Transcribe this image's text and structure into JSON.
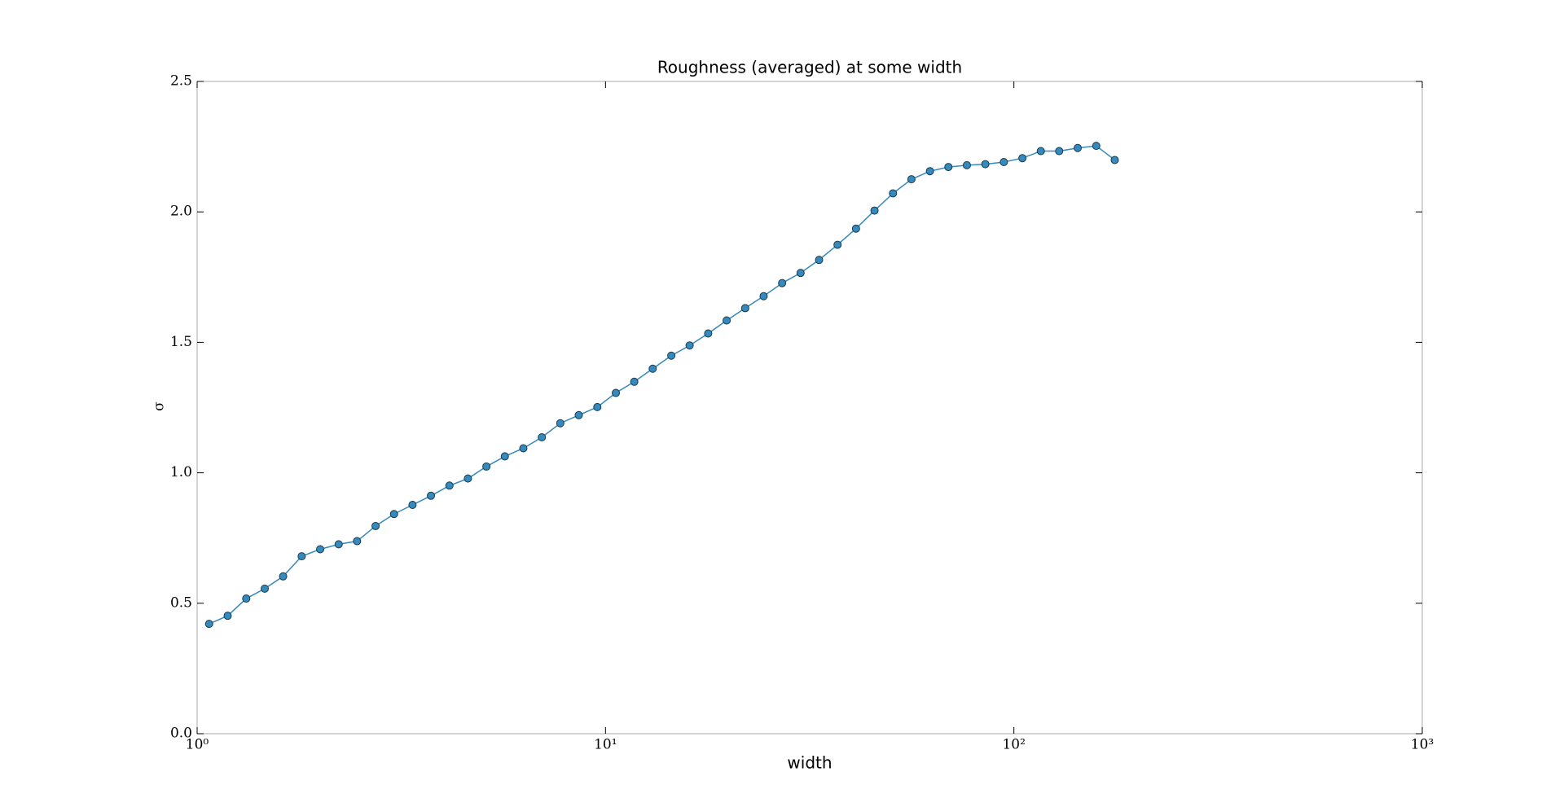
{
  "chart_data": {
    "type": "line",
    "title": "Roughness (averaged) at some width",
    "x_label": "width",
    "y_label": "σ",
    "x_scale": "log",
    "xlim": [
      1,
      1000
    ],
    "xticks": [
      {
        "value": 1,
        "label": "10⁰"
      },
      {
        "value": 10,
        "label": "10¹"
      },
      {
        "value": 100,
        "label": "10²"
      },
      {
        "value": 1000,
        "label": "10³"
      }
    ],
    "ylim": [
      0,
      2.5
    ],
    "yticks": [
      {
        "value": 0,
        "label": "0.0"
      },
      0.5,
      {
        "value": 1,
        "label": "1.0"
      },
      1.5,
      {
        "value": 2,
        "label": "2.0"
      },
      2.5
    ],
    "grid": false,
    "series": [
      {
        "name": "σ",
        "color": "#348abd",
        "x": [
          1.07,
          1.188,
          1.319,
          1.464,
          1.624,
          1.803,
          2.001,
          2.221,
          2.464,
          2.735,
          3.035,
          3.368,
          3.737,
          4.148,
          4.603,
          5.109,
          5.669,
          6.292,
          6.984,
          7.75,
          8.602,
          9.548,
          10.6,
          11.76,
          13.05,
          14.49,
          16.07,
          17.84,
          19.8,
          21.98,
          24.39,
          27.07,
          30.04,
          33.34,
          37.0,
          41.06,
          45.57,
          50.58,
          56.12,
          62.29,
          69.12,
          76.72,
          85.13,
          94.49,
          104.9,
          116.4,
          129.1,
          143.3,
          159.1,
          176.6
        ],
        "values": [
          0.421,
          0.452,
          0.518,
          0.556,
          0.603,
          0.68,
          0.707,
          0.726,
          0.738,
          0.796,
          0.842,
          0.877,
          0.912,
          0.951,
          0.978,
          1.024,
          1.063,
          1.094,
          1.136,
          1.19,
          1.221,
          1.252,
          1.306,
          1.349,
          1.399,
          1.449,
          1.488,
          1.534,
          1.584,
          1.631,
          1.677,
          1.727,
          1.766,
          1.816,
          1.874,
          1.936,
          2.005,
          2.071,
          2.125,
          2.156,
          2.172,
          2.179,
          2.183,
          2.191,
          2.206,
          2.233,
          2.233,
          2.245,
          2.253,
          2.199
        ]
      }
    ]
  }
}
